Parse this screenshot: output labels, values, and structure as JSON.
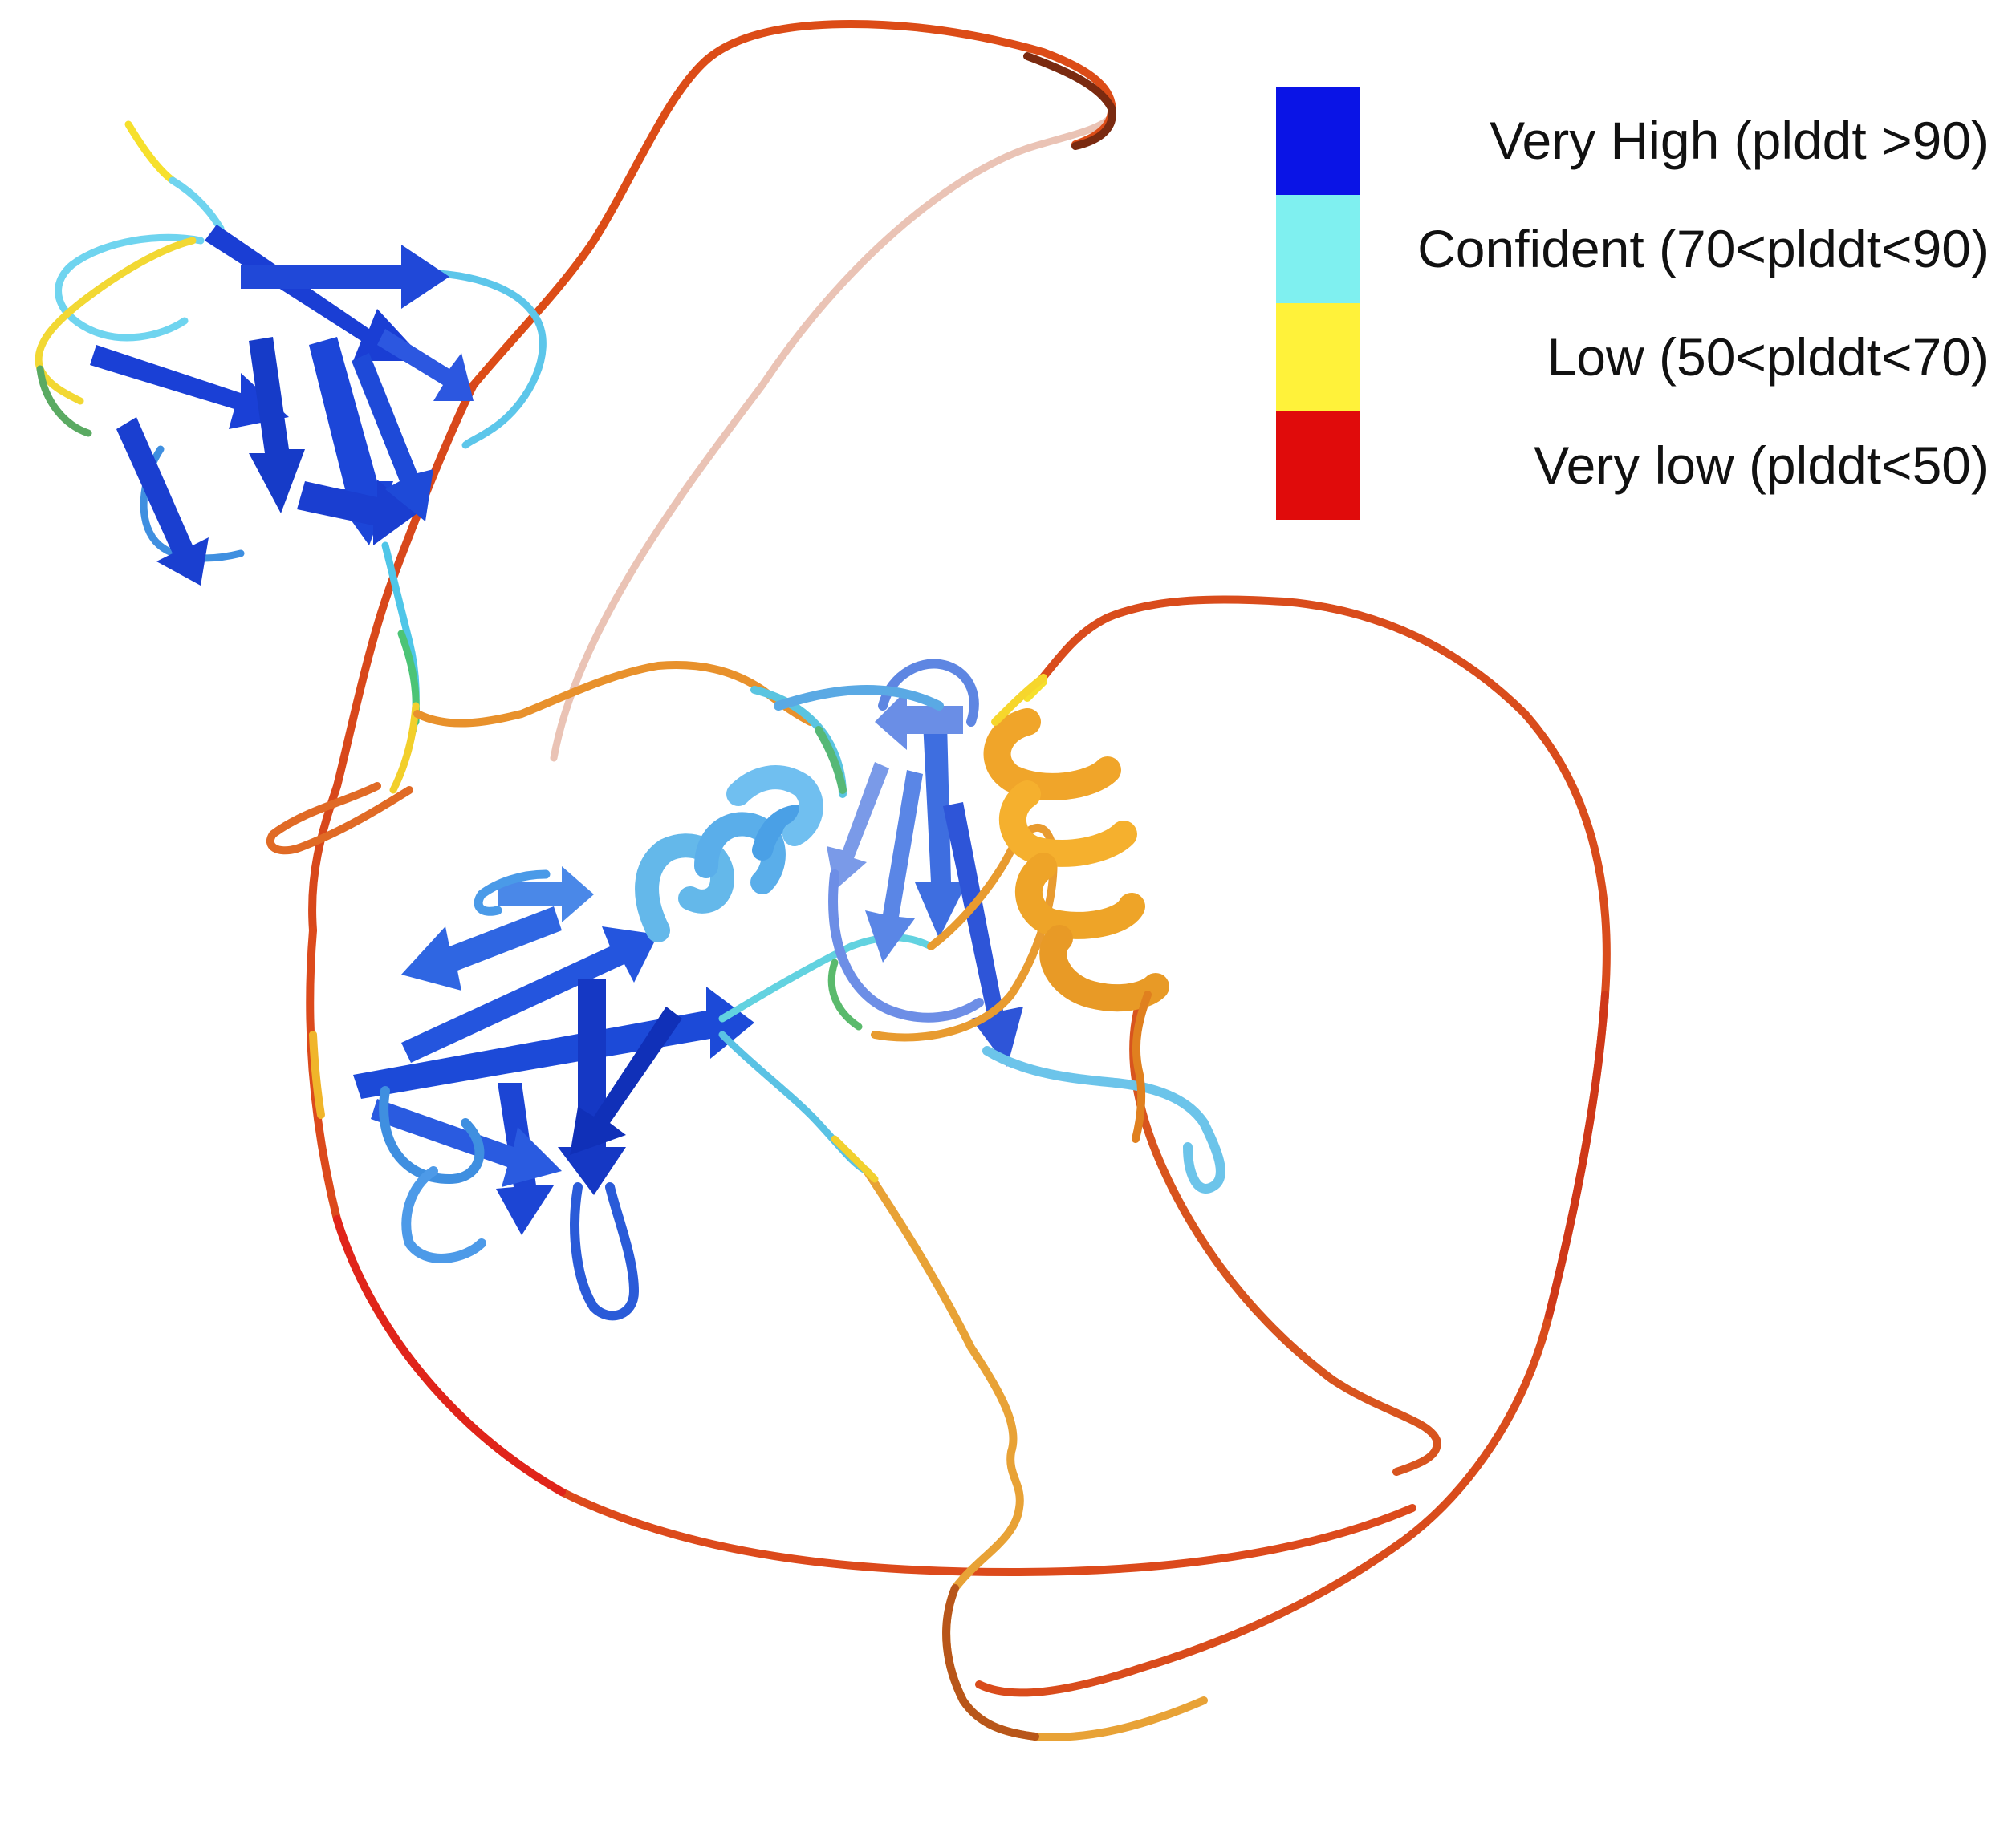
{
  "colors": {
    "very_high": "#0a14e6",
    "confident": "#7ff0f0",
    "low": "#fff23a",
    "very_low": "#e00b0b",
    "coil_orange": "#e0661e",
    "coil_dark": "#a5340f",
    "helix_orange": "#f5a623",
    "strand_blue": "#1a47d6",
    "strand_light": "#4d8de8"
  },
  "legend": {
    "items": [
      {
        "label": "Very High (plddt >90)",
        "color": "#0a14e6"
      },
      {
        "label": "Confident (70<plddt<90)",
        "color": "#7ff0f0"
      },
      {
        "label": "Low (50<plddt<70)",
        "color": "#fff23a"
      },
      {
        "label": "Very low (plddt<50)",
        "color": "#e00b0b"
      }
    ]
  }
}
